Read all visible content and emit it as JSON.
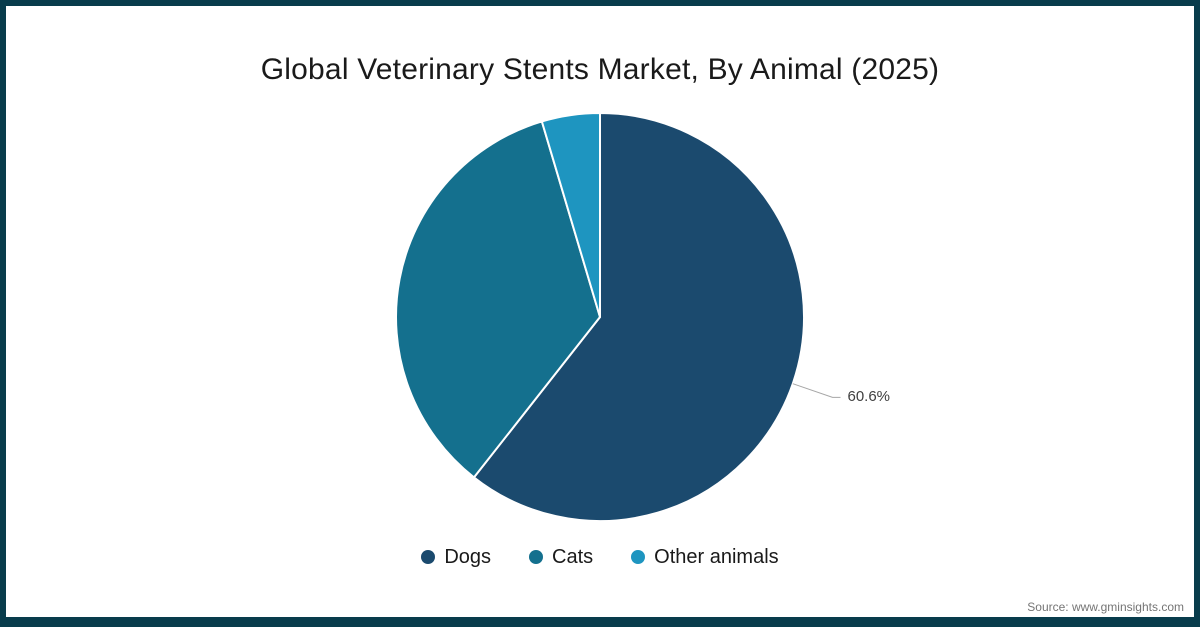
{
  "title": "Global Veterinary Stents Market, By Animal (2025)",
  "source": "Source: www.gminsights.com",
  "frame": {
    "border_color": "#083c4c"
  },
  "chart_data": {
    "type": "pie",
    "title": "Global Veterinary Stents Market, By Animal (2025)",
    "categories": [
      "Dogs",
      "Cats",
      "Other animals"
    ],
    "values": [
      60.6,
      34.8,
      4.6
    ],
    "colors": [
      "#1b4a6e",
      "#14708e",
      "#1e95c0"
    ],
    "start_angle_deg": 0,
    "direction": "clockwise",
    "slice_border_color": "#ffffff",
    "labeled_slice": {
      "category": "Dogs",
      "label": "60.6%"
    },
    "leader_line_color": "#a6a6a6",
    "legend_position": "bottom"
  }
}
